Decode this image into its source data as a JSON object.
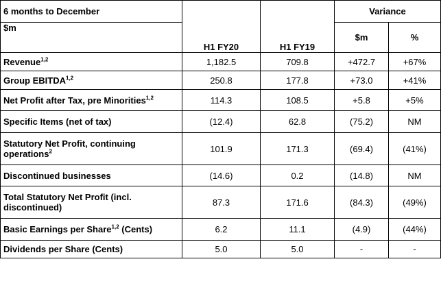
{
  "header": {
    "period_label": "6 months to December",
    "unit_label": "$m",
    "col_current": "H1 FY20",
    "col_prior": "H1 FY19",
    "variance_label": "Variance",
    "variance_abs_label": "$m",
    "variance_pct_label": "%"
  },
  "rows": [
    {
      "label": "Revenue",
      "sup": "1,2",
      "current": "1,182.5",
      "prior": "709.8",
      "var_abs": "+472.7",
      "var_pct": "+67%"
    },
    {
      "label": "Group EBITDA",
      "sup": "1,2",
      "current": "250.8",
      "prior": "177.8",
      "var_abs": "+73.0",
      "var_pct": "+41%"
    },
    {
      "label": "Net Profit after Tax, pre Minorities",
      "sup": "1,2",
      "current": "114.3",
      "prior": "108.5",
      "var_abs": "+5.8",
      "var_pct": "+5%"
    },
    {
      "label": "Specific Items (net of tax)",
      "sup": "",
      "current": "(12.4)",
      "prior": "62.8",
      "var_abs": "(75.2)",
      "var_pct": "NM"
    },
    {
      "label": "Statutory Net Profit, continuing operations",
      "sup": "2",
      "current": "101.9",
      "prior": "171.3",
      "var_abs": "(69.4)",
      "var_pct": "(41%)"
    },
    {
      "label": "Discontinued businesses",
      "sup": "",
      "current": "(14.6)",
      "prior": "0.2",
      "var_abs": "(14.8)",
      "var_pct": "NM"
    },
    {
      "label": "Total Statutory Net Profit (incl. discontinued)",
      "sup": "",
      "current": "87.3",
      "prior": "171.6",
      "var_abs": "(84.3)",
      "var_pct": "(49%)"
    },
    {
      "label": "Basic Earnings per Share",
      "sup": "1,2",
      "label_suffix": " (Cents)",
      "current": "6.2",
      "prior": "11.1",
      "var_abs": "(4.9)",
      "var_pct": "(44%)"
    },
    {
      "label": "Dividends per Share (Cents)",
      "sup": "",
      "current": "5.0",
      "prior": "5.0",
      "var_abs": "-",
      "var_pct": "-"
    }
  ]
}
